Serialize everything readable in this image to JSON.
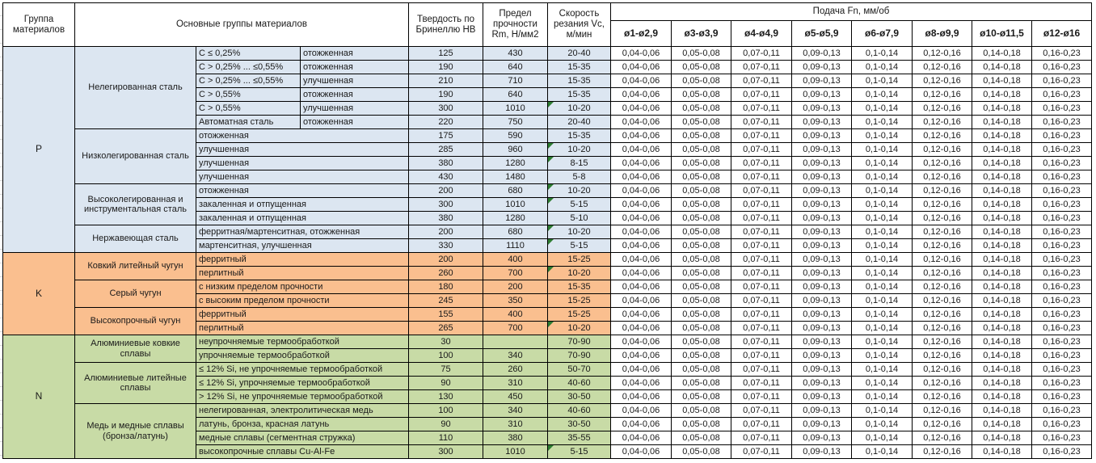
{
  "header": {
    "col_group": "Группа материалов",
    "col_main": "Основные группы материалов",
    "col_hb": "Твердость по Бринеллю HB",
    "col_rm": "Предел прочности Rm, Н/мм2",
    "col_vc": "Скорость резания Vc, м/мин",
    "feed_title": "Подача Fn, мм/об",
    "feed_cols": [
      "ø1-ø2,9",
      "ø3-ø3,9",
      "ø4-ø4,9",
      "ø5-ø5,9",
      "ø6-ø7,9",
      "ø8-ø9,9",
      "ø10-ø11,5",
      "ø12-ø16"
    ]
  },
  "feed_values": [
    "0,04-0,06",
    "0,05-0,08",
    "0,07-0,11",
    "0,09-0,13",
    "0,1-0,14",
    "0,12-0,16",
    "0,14-0,18",
    "0,16-0,23"
  ],
  "flag_color": "#2E7D32",
  "groups": [
    {
      "code": "P",
      "color": "#DCE6F1",
      "subgroups": [
        {
          "name": "Нелегированная сталь",
          "rows": [
            {
              "spec": "C ≤ 0,25%",
              "state": "отожженная",
              "hb": "125",
              "rm": "430",
              "vc": "20-40",
              "flag": false
            },
            {
              "spec": "C > 0,25% ... ≤0,55%",
              "state": "отожженная",
              "hb": "190",
              "rm": "640",
              "vc": "15-35",
              "flag": false
            },
            {
              "spec": "C > 0,25% ... ≤0,55%",
              "state": "улучшенная",
              "hb": "210",
              "rm": "710",
              "vc": "15-35",
              "flag": false
            },
            {
              "spec": "C > 0,55%",
              "state": "отожженная",
              "hb": "190",
              "rm": "640",
              "vc": "15-35",
              "flag": false
            },
            {
              "spec": "C > 0,55%",
              "state": "улучшенная",
              "hb": "300",
              "rm": "1010",
              "vc": "10-20",
              "flag": true
            },
            {
              "spec": "Автоматная сталь",
              "state": "отожженная",
              "hb": "220",
              "rm": "750",
              "vc": "20-40",
              "flag": false
            }
          ]
        },
        {
          "name": "Низколегированная сталь",
          "rows": [
            {
              "spec": "отожженная",
              "hb": "175",
              "rm": "590",
              "vc": "15-35",
              "flag": false
            },
            {
              "spec": "улучшенная",
              "hb": "285",
              "rm": "960",
              "vc": "10-20",
              "flag": true
            },
            {
              "spec": "улучшенная",
              "hb": "380",
              "rm": "1280",
              "vc": "8-15",
              "flag": true
            },
            {
              "spec": "улучшенная",
              "hb": "430",
              "rm": "1480",
              "vc": "5-8",
              "flag": false
            }
          ]
        },
        {
          "name": "Высоколегированная и инструментальная сталь",
          "rows": [
            {
              "spec": "отожженная",
              "hb": "200",
              "rm": "680",
              "vc": "10-20",
              "flag": true
            },
            {
              "spec": "закаленная и отпущенная",
              "hb": "300",
              "rm": "1010",
              "vc": "5-15",
              "flag": true
            },
            {
              "spec": "закаленная и отпущенная",
              "hb": "380",
              "rm": "1280",
              "vc": "5-10",
              "flag": false
            }
          ]
        },
        {
          "name": "Нержавеющая сталь",
          "rows": [
            {
              "spec": "ферритная/мартенситная, отожженная",
              "hb": "200",
              "rm": "680",
              "vc": "10-20",
              "flag": true
            },
            {
              "spec": "мартенситная, улучшенная",
              "hb": "330",
              "rm": "1110",
              "vc": "5-15",
              "flag": true
            }
          ]
        }
      ]
    },
    {
      "code": "K",
      "color": "#FABF8F",
      "subgroups": [
        {
          "name": "Ковкий литейный чугун",
          "rows": [
            {
              "spec": "ферритный",
              "hb": "200",
              "rm": "400",
              "vc": "15-25",
              "flag": false
            },
            {
              "spec": "перлитный",
              "hb": "260",
              "rm": "700",
              "vc": "10-20",
              "flag": true
            }
          ]
        },
        {
          "name": "Серый чугун",
          "rows": [
            {
              "spec": "с низким пределом прочности",
              "hb": "180",
              "rm": "200",
              "vc": "15-35",
              "flag": false
            },
            {
              "spec": "с высоким пределом прочности",
              "hb": "245",
              "rm": "350",
              "vc": "15-25",
              "flag": false
            }
          ]
        },
        {
          "name": "Высокопрочный чугун",
          "rows": [
            {
              "spec": "ферритный",
              "hb": "155",
              "rm": "400",
              "vc": "15-25",
              "flag": false
            },
            {
              "spec": "перлитный",
              "hb": "265",
              "rm": "700",
              "vc": "10-20",
              "flag": true
            }
          ]
        }
      ]
    },
    {
      "code": "N",
      "color": "#C8DBA6",
      "subgroups": [
        {
          "name": "Алюминиевые ковкие сплавы",
          "rows": [
            {
              "spec": "неупрочняемые термообработкой",
              "hb": "30",
              "rm": "",
              "vc": "70-90",
              "flag": false
            },
            {
              "spec": "упрочняемые термообработкой",
              "hb": "100",
              "rm": "340",
              "vc": "70-90",
              "flag": false
            }
          ]
        },
        {
          "name": "Алюминиевые литейные сплавы",
          "rows": [
            {
              "spec": "≤ 12% Si, не упрочняемые термообработкой",
              "hb": "75",
              "rm": "260",
              "vc": "50-70",
              "flag": false
            },
            {
              "spec": "≤ 12% Si, упрочняемые термообработкой",
              "hb": "90",
              "rm": "310",
              "vc": "40-60",
              "flag": false
            },
            {
              "spec": "> 12% Si, не упрочняемые термообработкой",
              "hb": "130",
              "rm": "450",
              "vc": "30-50",
              "flag": false
            }
          ]
        },
        {
          "name": "Медь и медные сплавы (бронза/латунь)",
          "rows": [
            {
              "spec": "нелегированная, электролитическая медь",
              "hb": "100",
              "rm": "340",
              "vc": "40-60",
              "flag": false
            },
            {
              "spec": "латунь, бронза, красная латунь",
              "hb": "90",
              "rm": "310",
              "vc": "30-50",
              "flag": false
            },
            {
              "spec": "медные сплавы (сегментная стружка)",
              "hb": "110",
              "rm": "380",
              "vc": "35-55",
              "flag": false
            },
            {
              "spec": "высокопрочные сплавы Cu-Al-Fe",
              "hb": "300",
              "rm": "1010",
              "vc": "5-15",
              "flag": true
            }
          ]
        }
      ]
    }
  ]
}
